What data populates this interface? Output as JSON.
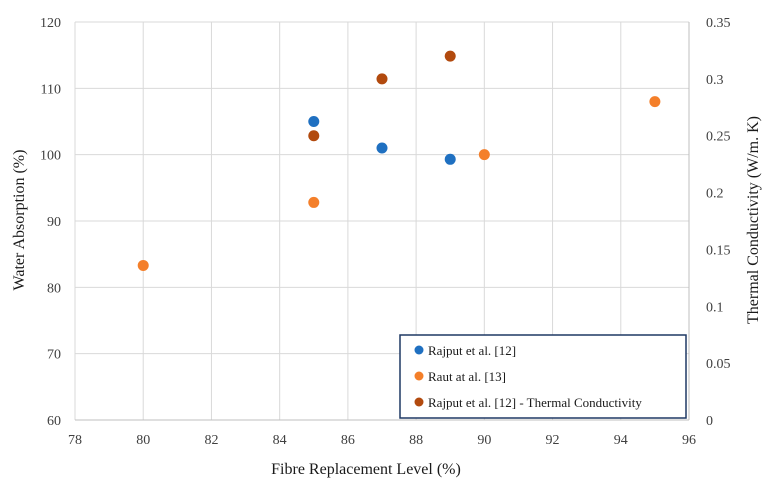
{
  "chart_data": {
    "type": "scatter",
    "title": "",
    "xlabel": "Fibre Replacement Level (%)",
    "ylabel": "Water Absorption (%)",
    "y2label": "Thermal Conductivity (W/m. K)",
    "xlim": [
      78,
      96
    ],
    "ylim": [
      60,
      120
    ],
    "y2lim": [
      0,
      0.35
    ],
    "x_ticks": [
      "78",
      "80",
      "82",
      "84",
      "86",
      "88",
      "90",
      "92",
      "94",
      "96"
    ],
    "y_ticks": [
      "60",
      "70",
      "80",
      "90",
      "100",
      "110",
      "120"
    ],
    "y2_ticks": [
      "0",
      "0.05",
      "0.1",
      "0.15",
      "0.2",
      "0.25",
      "0.3",
      "0.35"
    ],
    "grid": true,
    "legend_position": "bottom-right",
    "series": [
      {
        "name": "Rajput et al. [12]",
        "axis": "left",
        "color": "#1f70c1",
        "points": [
          {
            "x": 85,
            "y": 105
          },
          {
            "x": 87,
            "y": 101
          },
          {
            "x": 89,
            "y": 99.3
          }
        ]
      },
      {
        "name": "Raut at al. [13]",
        "axis": "left",
        "color": "#f47f2a",
        "points": [
          {
            "x": 80,
            "y": 83.3
          },
          {
            "x": 85,
            "y": 92.8
          },
          {
            "x": 90,
            "y": 100
          },
          {
            "x": 95,
            "y": 108
          }
        ]
      },
      {
        "name": "Rajput et al. [12] - Thermal Conductivity",
        "axis": "right",
        "color": "#b24a0e",
        "points": [
          {
            "x": 85,
            "y": 0.25
          },
          {
            "x": 87,
            "y": 0.3
          },
          {
            "x": 89,
            "y": 0.32
          }
        ]
      }
    ]
  }
}
